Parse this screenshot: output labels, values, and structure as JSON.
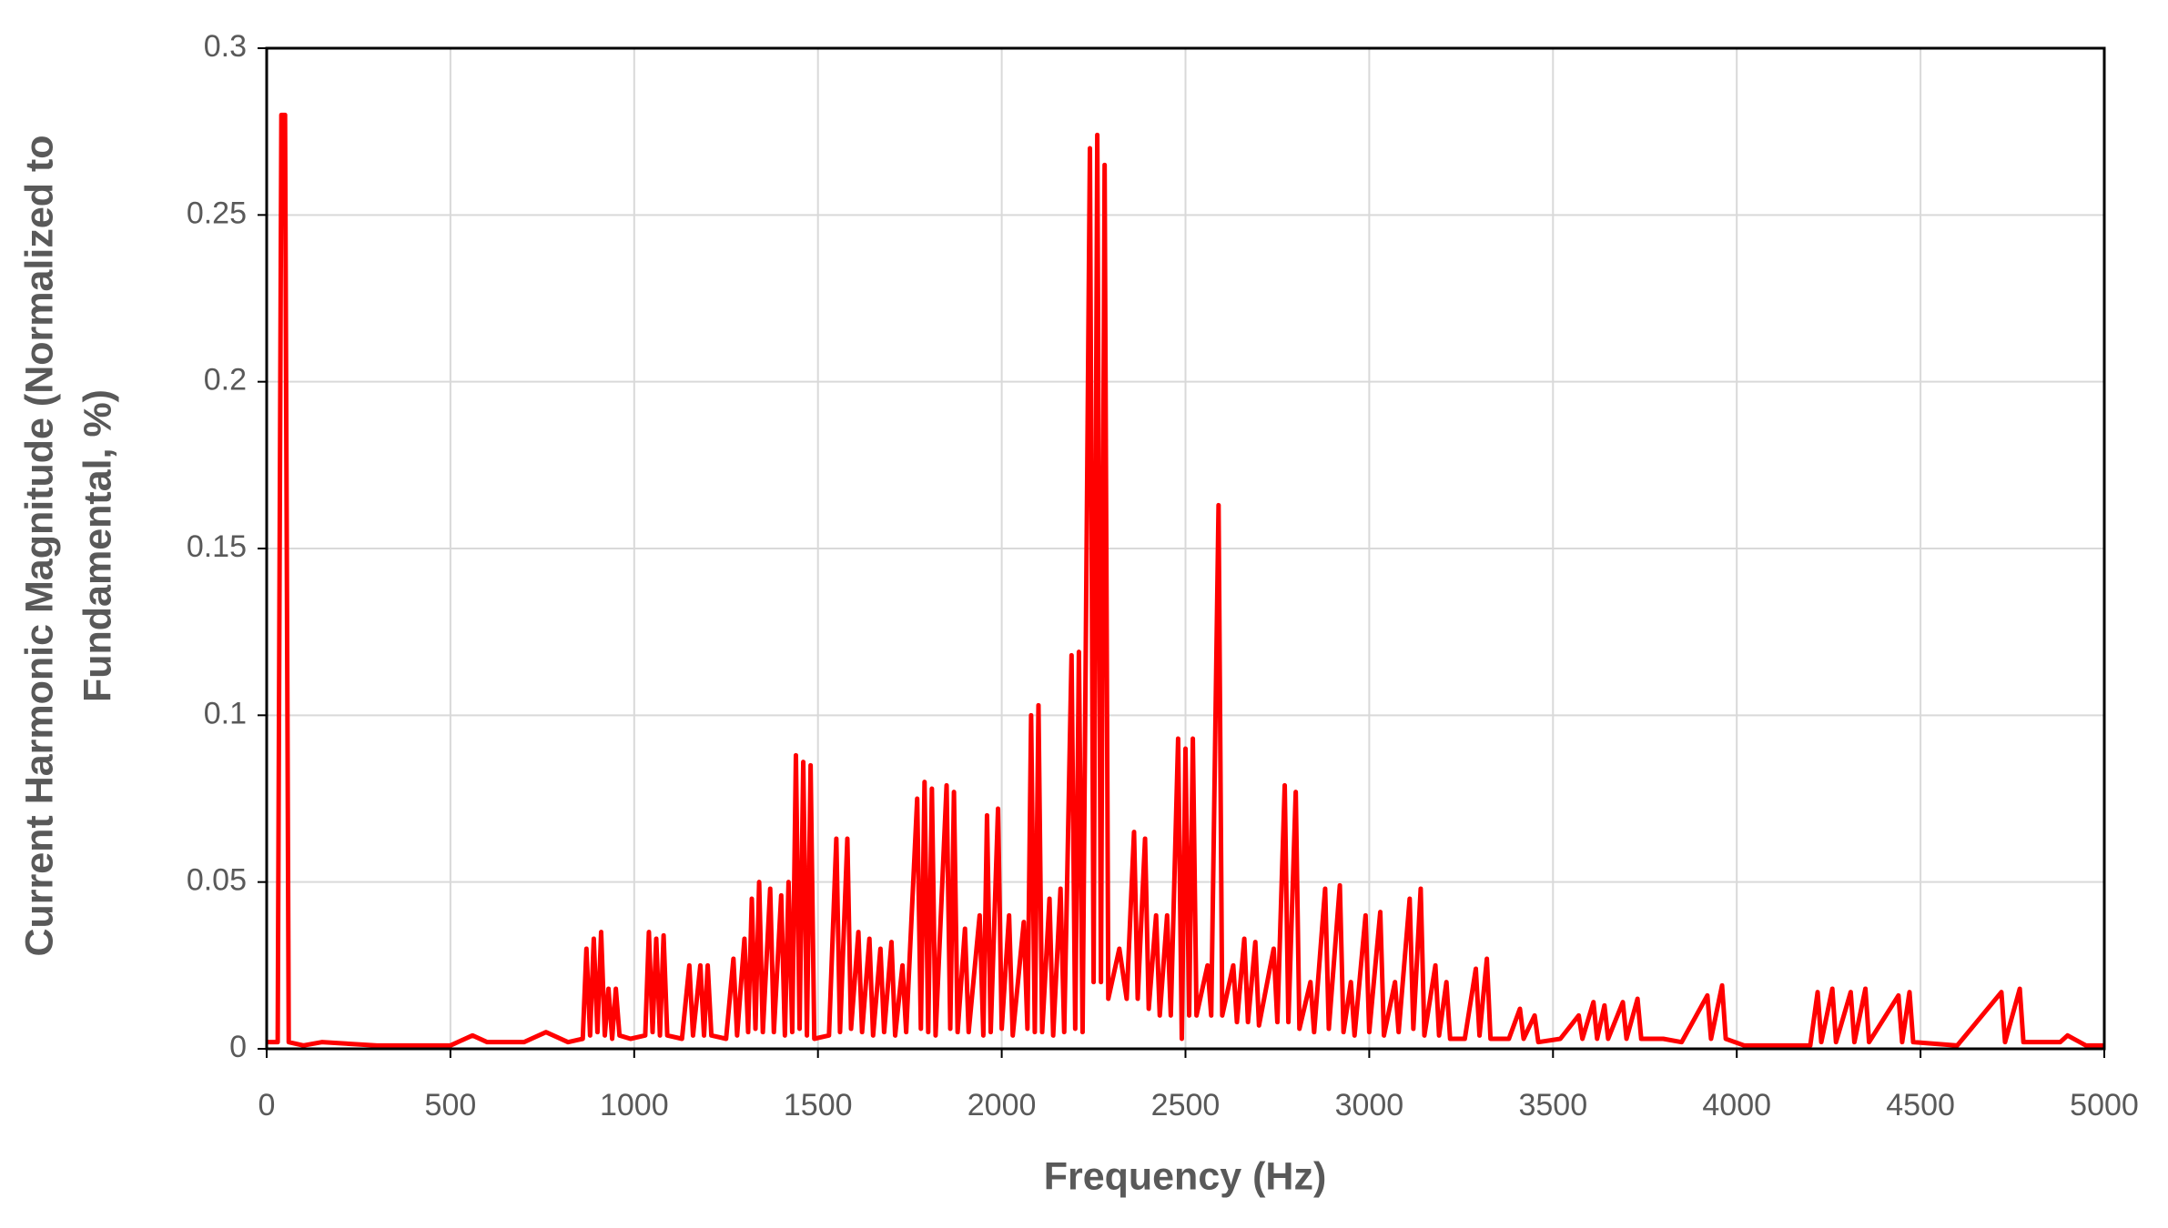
{
  "chart_data": {
    "type": "line",
    "xlabel": "Frequency (Hz)",
    "ylabel": [
      "Current Harmonic Magnitude (Normalized to",
      "Fundamental, %)"
    ],
    "xlim": [
      0,
      5000
    ],
    "xticks": [
      0,
      500,
      1000,
      1500,
      2000,
      2500,
      3000,
      3500,
      4000,
      4500,
      5000
    ],
    "ylim": [
      0,
      0.3
    ],
    "yticks": [
      0,
      0.05,
      0.1,
      0.15,
      0.2,
      0.25,
      0.3
    ],
    "grid": true,
    "series": [
      {
        "color": "#ff0000",
        "x": [
          0,
          30,
          40,
          50,
          60,
          100,
          150,
          300,
          500,
          560,
          600,
          700,
          760,
          820,
          860,
          870,
          880,
          890,
          900,
          910,
          920,
          930,
          940,
          950,
          960,
          990,
          1030,
          1040,
          1050,
          1060,
          1070,
          1080,
          1090,
          1130,
          1150,
          1160,
          1180,
          1190,
          1200,
          1210,
          1250,
          1270,
          1280,
          1300,
          1310,
          1320,
          1330,
          1340,
          1350,
          1370,
          1380,
          1400,
          1410,
          1420,
          1430,
          1440,
          1450,
          1460,
          1470,
          1480,
          1490,
          1530,
          1550,
          1560,
          1580,
          1590,
          1610,
          1620,
          1640,
          1650,
          1670,
          1680,
          1700,
          1710,
          1730,
          1740,
          1770,
          1780,
          1790,
          1800,
          1810,
          1820,
          1850,
          1860,
          1870,
          1880,
          1900,
          1910,
          1940,
          1950,
          1960,
          1970,
          1990,
          2000,
          2020,
          2030,
          2060,
          2070,
          2080,
          2090,
          2100,
          2110,
          2130,
          2140,
          2160,
          2170,
          2190,
          2200,
          2210,
          2220,
          2240,
          2250,
          2260,
          2270,
          2280,
          2290,
          2320,
          2340,
          2360,
          2370,
          2390,
          2400,
          2420,
          2430,
          2450,
          2460,
          2480,
          2490,
          2500,
          2510,
          2520,
          2530,
          2560,
          2570,
          2590,
          2600,
          2630,
          2640,
          2660,
          2670,
          2690,
          2700,
          2740,
          2750,
          2770,
          2780,
          2800,
          2810,
          2840,
          2850,
          2880,
          2890,
          2920,
          2930,
          2950,
          2960,
          2990,
          3000,
          3030,
          3040,
          3070,
          3080,
          3110,
          3120,
          3140,
          3150,
          3180,
          3190,
          3210,
          3220,
          3260,
          3290,
          3300,
          3320,
          3330,
          3380,
          3410,
          3420,
          3450,
          3460,
          3520,
          3570,
          3580,
          3610,
          3620,
          3640,
          3650,
          3690,
          3700,
          3730,
          3740,
          3800,
          3850,
          3920,
          3930,
          3960,
          3970,
          4020,
          4200,
          4220,
          4230,
          4260,
          4270,
          4310,
          4320,
          4350,
          4360,
          4440,
          4450,
          4470,
          4480,
          4600,
          4720,
          4730,
          4770,
          4780,
          4880,
          4900,
          4950,
          5000
        ],
        "values": [
          0.002,
          0.002,
          0.28,
          0.28,
          0.002,
          0.001,
          0.002,
          0.001,
          0.001,
          0.004,
          0.002,
          0.002,
          0.005,
          0.002,
          0.003,
          0.03,
          0.004,
          0.033,
          0.005,
          0.035,
          0.004,
          0.018,
          0.003,
          0.018,
          0.004,
          0.003,
          0.004,
          0.035,
          0.005,
          0.033,
          0.004,
          0.034,
          0.004,
          0.003,
          0.025,
          0.004,
          0.025,
          0.004,
          0.025,
          0.004,
          0.003,
          0.027,
          0.004,
          0.033,
          0.005,
          0.045,
          0.006,
          0.05,
          0.005,
          0.048,
          0.005,
          0.046,
          0.004,
          0.05,
          0.005,
          0.088,
          0.006,
          0.086,
          0.004,
          0.085,
          0.003,
          0.004,
          0.063,
          0.005,
          0.063,
          0.006,
          0.035,
          0.005,
          0.033,
          0.004,
          0.03,
          0.005,
          0.032,
          0.004,
          0.025,
          0.005,
          0.075,
          0.006,
          0.08,
          0.005,
          0.078,
          0.004,
          0.079,
          0.006,
          0.077,
          0.005,
          0.036,
          0.005,
          0.04,
          0.004,
          0.07,
          0.005,
          0.072,
          0.006,
          0.04,
          0.004,
          0.038,
          0.006,
          0.1,
          0.005,
          0.103,
          0.005,
          0.045,
          0.004,
          0.048,
          0.005,
          0.118,
          0.006,
          0.119,
          0.005,
          0.27,
          0.02,
          0.274,
          0.02,
          0.265,
          0.015,
          0.03,
          0.015,
          0.065,
          0.015,
          0.063,
          0.012,
          0.04,
          0.01,
          0.04,
          0.01,
          0.093,
          0.003,
          0.09,
          0.01,
          0.093,
          0.01,
          0.025,
          0.01,
          0.163,
          0.01,
          0.025,
          0.008,
          0.033,
          0.008,
          0.032,
          0.007,
          0.03,
          0.008,
          0.079,
          0.008,
          0.077,
          0.006,
          0.02,
          0.005,
          0.048,
          0.006,
          0.049,
          0.005,
          0.02,
          0.004,
          0.04,
          0.005,
          0.041,
          0.004,
          0.02,
          0.005,
          0.045,
          0.006,
          0.048,
          0.004,
          0.025,
          0.004,
          0.02,
          0.003,
          0.003,
          0.024,
          0.004,
          0.027,
          0.003,
          0.003,
          0.012,
          0.003,
          0.01,
          0.002,
          0.003,
          0.01,
          0.003,
          0.014,
          0.003,
          0.013,
          0.003,
          0.014,
          0.003,
          0.015,
          0.003,
          0.003,
          0.002,
          0.016,
          0.003,
          0.019,
          0.003,
          0.001,
          0.001,
          0.017,
          0.002,
          0.018,
          0.002,
          0.017,
          0.002,
          0.018,
          0.002,
          0.016,
          0.002,
          0.017,
          0.002,
          0.001,
          0.017,
          0.002,
          0.018,
          0.002,
          0.002,
          0.004,
          0.001,
          0.001
        ]
      }
    ]
  }
}
